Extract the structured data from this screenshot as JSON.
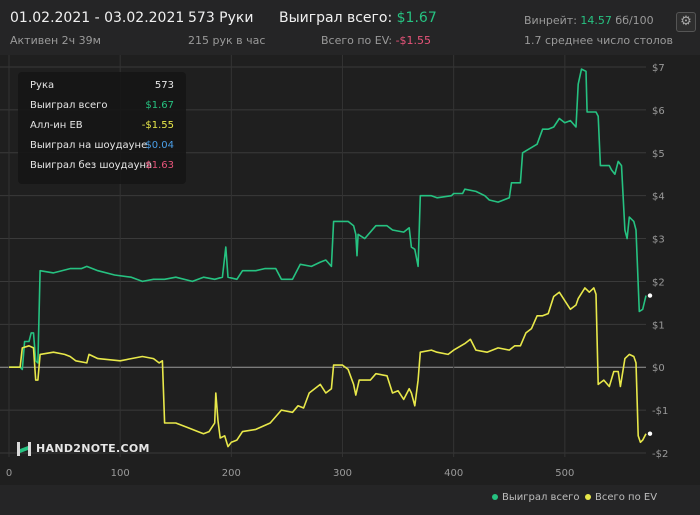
{
  "header": {
    "date_range": "01.02.2021 - 03.02.2021",
    "active": "Активен 2ч 39м",
    "hands": "573 Руки",
    "hands_per_hour": "215 рук в час",
    "won_total_label": "Выиграл всего:",
    "won_total_value": "$1.67",
    "ev_total_label": "Всего по EV:",
    "ev_total_value": "-$1.55",
    "winrate_label": "Винрейт:",
    "winrate_value": "14.57",
    "winrate_unit": "бб/100",
    "tables": "1.7 среднее число столов",
    "settings_icon": "gear-icon"
  },
  "tooltip": {
    "rows": [
      {
        "label": "Рука",
        "value": "573",
        "color": "#e6e6e6"
      },
      {
        "label": "Выиграл всего",
        "value": "$1.67",
        "color": "#26c281"
      },
      {
        "label": "Алл-ин EB",
        "value": "-$1.55",
        "color": "#e8e84a"
      },
      {
        "label": "Выиграл на шоудауне",
        "value": "$0.04",
        "color": "#4a9fe8"
      },
      {
        "label": "Выиграл без шоудауна",
        "value": "$1.63",
        "color": "#e8547a"
      }
    ]
  },
  "logo": {
    "text": "HAND2NOTE.COM"
  },
  "legend": {
    "items": [
      {
        "label": "Выиграл всего",
        "color": "#26c281"
      },
      {
        "label": "Всего по EV",
        "color": "#e8e84a"
      }
    ]
  },
  "chart_data": {
    "type": "line",
    "xlim": [
      0,
      573
    ],
    "ylim": [
      -2,
      7
    ],
    "x_ticks": [
      0,
      100,
      200,
      300,
      400,
      500
    ],
    "y_ticks": [
      7,
      6,
      5,
      4,
      3,
      2,
      1,
      0,
      -1,
      -2
    ],
    "y_tick_labels": [
      "$7",
      "$6",
      "$5",
      "$4",
      "$3",
      "$2",
      "$1",
      "$0",
      "-$1",
      "-$2"
    ],
    "grid": true,
    "legend_position": "bottom-right",
    "series": [
      {
        "name": "Выиграл всего",
        "color": "#26c281",
        "points": [
          [
            0,
            0
          ],
          [
            10,
            0
          ],
          [
            12,
            -0.05
          ],
          [
            14,
            0.6
          ],
          [
            18,
            0.6
          ],
          [
            20,
            0.8
          ],
          [
            22,
            0.8
          ],
          [
            24,
            0.15
          ],
          [
            26,
            0.1
          ],
          [
            28,
            2.25
          ],
          [
            40,
            2.2
          ],
          [
            55,
            2.3
          ],
          [
            65,
            2.3
          ],
          [
            70,
            2.35
          ],
          [
            80,
            2.25
          ],
          [
            95,
            2.15
          ],
          [
            110,
            2.1
          ],
          [
            120,
            2.0
          ],
          [
            130,
            2.05
          ],
          [
            140,
            2.05
          ],
          [
            150,
            2.1
          ],
          [
            165,
            2.0
          ],
          [
            175,
            2.1
          ],
          [
            185,
            2.05
          ],
          [
            192,
            2.1
          ],
          [
            195,
            2.8
          ],
          [
            197,
            2.1
          ],
          [
            205,
            2.05
          ],
          [
            210,
            2.25
          ],
          [
            222,
            2.25
          ],
          [
            230,
            2.3
          ],
          [
            240,
            2.3
          ],
          [
            245,
            2.05
          ],
          [
            255,
            2.05
          ],
          [
            262,
            2.4
          ],
          [
            272,
            2.35
          ],
          [
            280,
            2.45
          ],
          [
            285,
            2.5
          ],
          [
            290,
            2.35
          ],
          [
            292,
            3.4
          ],
          [
            305,
            3.4
          ],
          [
            310,
            3.3
          ],
          [
            312,
            3.1
          ],
          [
            313,
            2.6
          ],
          [
            314,
            3.1
          ],
          [
            320,
            3.0
          ],
          [
            330,
            3.3
          ],
          [
            340,
            3.3
          ],
          [
            345,
            3.2
          ],
          [
            355,
            3.15
          ],
          [
            360,
            3.25
          ],
          [
            362,
            2.8
          ],
          [
            365,
            2.75
          ],
          [
            368,
            2.35
          ],
          [
            370,
            4.0
          ],
          [
            380,
            4.0
          ],
          [
            385,
            3.95
          ],
          [
            398,
            4.0
          ],
          [
            400,
            4.05
          ],
          [
            408,
            4.05
          ],
          [
            410,
            4.15
          ],
          [
            420,
            4.1
          ],
          [
            428,
            4.0
          ],
          [
            432,
            3.9
          ],
          [
            440,
            3.85
          ],
          [
            450,
            3.95
          ],
          [
            452,
            4.3
          ],
          [
            460,
            4.3
          ],
          [
            462,
            5.0
          ],
          [
            475,
            5.2
          ],
          [
            480,
            5.55
          ],
          [
            485,
            5.55
          ],
          [
            490,
            5.6
          ],
          [
            495,
            5.8
          ],
          [
            500,
            5.7
          ],
          [
            505,
            5.75
          ],
          [
            510,
            5.6
          ],
          [
            512,
            6.6
          ],
          [
            515,
            6.95
          ],
          [
            519,
            6.9
          ],
          [
            520,
            5.95
          ],
          [
            524,
            5.95
          ],
          [
            528,
            5.95
          ],
          [
            530,
            5.85
          ],
          [
            532,
            4.7
          ],
          [
            540,
            4.7
          ],
          [
            542,
            4.6
          ],
          [
            545,
            4.5
          ],
          [
            548,
            4.8
          ],
          [
            551,
            4.7
          ],
          [
            554,
            3.2
          ],
          [
            556,
            3.0
          ],
          [
            558,
            3.5
          ],
          [
            562,
            3.4
          ],
          [
            564,
            3.2
          ],
          [
            567,
            1.3
          ],
          [
            570,
            1.35
          ],
          [
            573,
            1.67
          ]
        ]
      },
      {
        "name": "Всего по EV",
        "color": "#e8e84a",
        "points": [
          [
            0,
            0
          ],
          [
            10,
            0
          ],
          [
            12,
            0.45
          ],
          [
            18,
            0.5
          ],
          [
            22,
            0.45
          ],
          [
            24,
            -0.3
          ],
          [
            26,
            -0.3
          ],
          [
            28,
            0.3
          ],
          [
            40,
            0.35
          ],
          [
            50,
            0.3
          ],
          [
            55,
            0.25
          ],
          [
            60,
            0.15
          ],
          [
            70,
            0.1
          ],
          [
            72,
            0.3
          ],
          [
            80,
            0.2
          ],
          [
            100,
            0.15
          ],
          [
            110,
            0.2
          ],
          [
            120,
            0.25
          ],
          [
            130,
            0.2
          ],
          [
            135,
            0.1
          ],
          [
            138,
            0.15
          ],
          [
            140,
            -1.3
          ],
          [
            150,
            -1.3
          ],
          [
            160,
            -1.4
          ],
          [
            170,
            -1.5
          ],
          [
            175,
            -1.55
          ],
          [
            180,
            -1.5
          ],
          [
            185,
            -1.3
          ],
          [
            186,
            -0.6
          ],
          [
            188,
            -1.25
          ],
          [
            190,
            -1.65
          ],
          [
            194,
            -1.6
          ],
          [
            197,
            -1.85
          ],
          [
            200,
            -1.75
          ],
          [
            205,
            -1.7
          ],
          [
            210,
            -1.5
          ],
          [
            222,
            -1.45
          ],
          [
            235,
            -1.3
          ],
          [
            245,
            -1.0
          ],
          [
            255,
            -1.05
          ],
          [
            260,
            -0.9
          ],
          [
            265,
            -0.95
          ],
          [
            270,
            -0.6
          ],
          [
            280,
            -0.4
          ],
          [
            285,
            -0.6
          ],
          [
            290,
            -0.5
          ],
          [
            292,
            0.05
          ],
          [
            300,
            0.05
          ],
          [
            305,
            -0.05
          ],
          [
            310,
            -0.4
          ],
          [
            312,
            -0.65
          ],
          [
            315,
            -0.3
          ],
          [
            325,
            -0.3
          ],
          [
            330,
            -0.15
          ],
          [
            340,
            -0.2
          ],
          [
            345,
            -0.6
          ],
          [
            350,
            -0.55
          ],
          [
            355,
            -0.75
          ],
          [
            360,
            -0.5
          ],
          [
            362,
            -0.6
          ],
          [
            365,
            -0.9
          ],
          [
            368,
            -0.3
          ],
          [
            370,
            0.35
          ],
          [
            380,
            0.4
          ],
          [
            385,
            0.35
          ],
          [
            395,
            0.3
          ],
          [
            400,
            0.4
          ],
          [
            410,
            0.55
          ],
          [
            415,
            0.65
          ],
          [
            420,
            0.4
          ],
          [
            430,
            0.35
          ],
          [
            440,
            0.45
          ],
          [
            450,
            0.4
          ],
          [
            455,
            0.5
          ],
          [
            460,
            0.5
          ],
          [
            465,
            0.8
          ],
          [
            470,
            0.9
          ],
          [
            475,
            1.2
          ],
          [
            480,
            1.2
          ],
          [
            485,
            1.25
          ],
          [
            490,
            1.65
          ],
          [
            495,
            1.75
          ],
          [
            500,
            1.55
          ],
          [
            505,
            1.35
          ],
          [
            510,
            1.45
          ],
          [
            512,
            1.6
          ],
          [
            518,
            1.85
          ],
          [
            522,
            1.75
          ],
          [
            526,
            1.85
          ],
          [
            528,
            1.7
          ],
          [
            530,
            -0.4
          ],
          [
            535,
            -0.3
          ],
          [
            540,
            -0.45
          ],
          [
            544,
            -0.1
          ],
          [
            548,
            -0.1
          ],
          [
            550,
            -0.45
          ],
          [
            554,
            0.2
          ],
          [
            558,
            0.3
          ],
          [
            562,
            0.25
          ],
          [
            564,
            0.1
          ],
          [
            566,
            -1.6
          ],
          [
            568,
            -1.75
          ],
          [
            570,
            -1.7
          ],
          [
            573,
            -1.55
          ]
        ]
      }
    ]
  }
}
